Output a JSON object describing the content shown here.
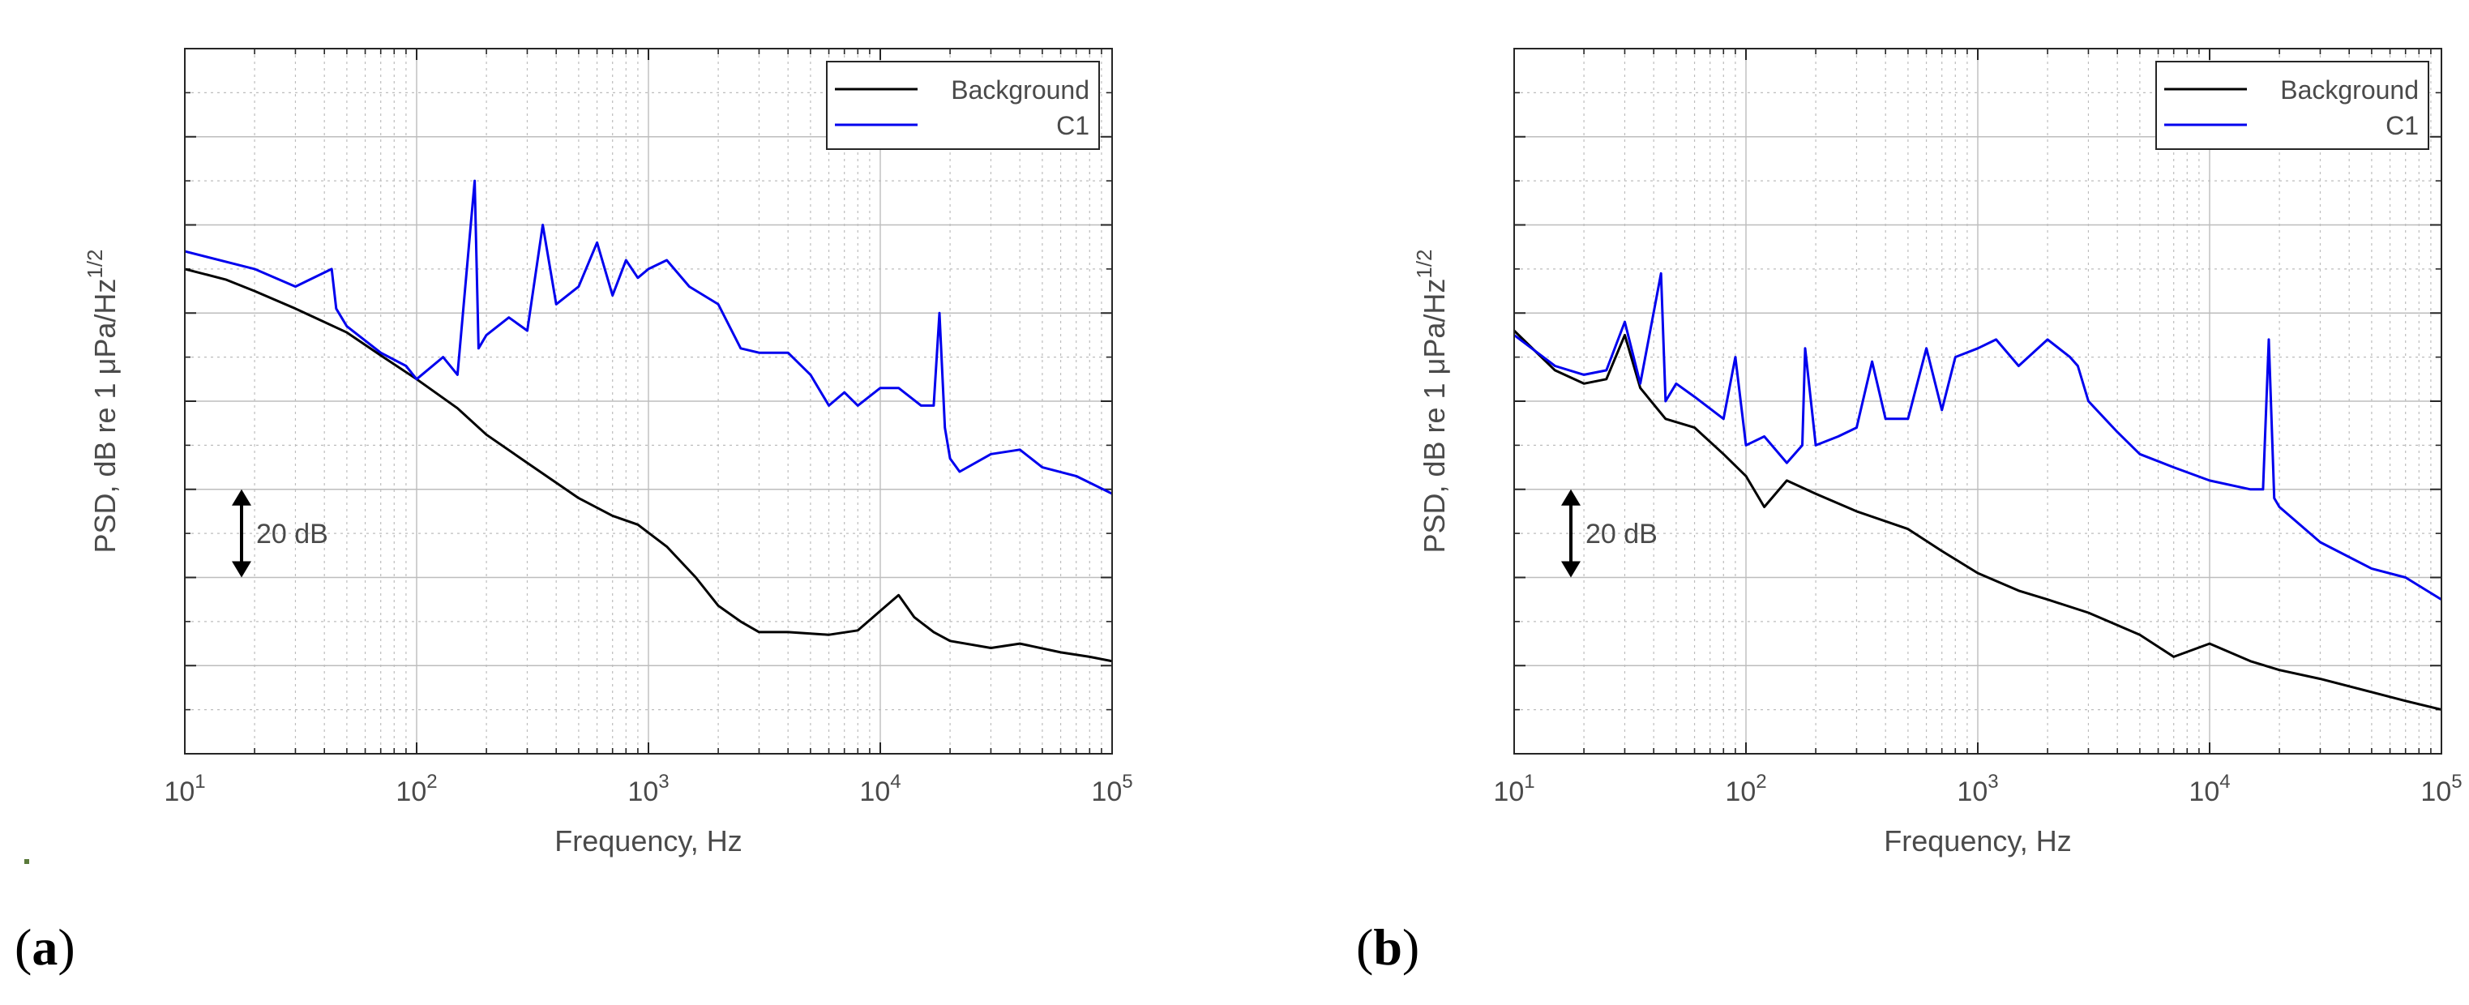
{
  "colors": {
    "background_series": "#000000",
    "c1_series": "#0000ee",
    "grid": "#bdbdbd",
    "axis": "#262626",
    "text": "#4a4a4a"
  },
  "chart_data": [
    {
      "panel_label": "(a)",
      "type": "line",
      "xscale": "log",
      "xlim": [
        10,
        100000
      ],
      "ylim": [
        0,
        8
      ],
      "yticks_shown": false,
      "xlabel": "Frequency, Hz",
      "ylabel": "PSD, dB re 1 μPa/Hz^1/2",
      "ylabel_parts": {
        "main": "PSD, dB re 1 μPa/Hz",
        "sup": "1/2"
      },
      "xticks": [
        {
          "base": "10",
          "exp": "1"
        },
        {
          "base": "10",
          "exp": "2"
        },
        {
          "base": "10",
          "exp": "3"
        },
        {
          "base": "10",
          "exp": "4"
        },
        {
          "base": "10",
          "exp": "5"
        }
      ],
      "grid": true,
      "legend": {
        "position": "top-right",
        "entries": [
          "Background",
          "C1"
        ]
      },
      "scale_annotation": {
        "label": "20 dB",
        "y_from": 2,
        "y_to": 3
      },
      "series": [
        {
          "name": "Background",
          "x": [
            10,
            15,
            20,
            30,
            50,
            70,
            100,
            150,
            200,
            300,
            500,
            700,
            900,
            1200,
            1600,
            2000,
            2500,
            3000,
            4000,
            6000,
            8000,
            10000,
            12000,
            14000,
            17000,
            20000,
            30000,
            40000,
            60000,
            80000,
            100000
          ],
          "y": [
            5.5,
            5.38,
            5.25,
            5.05,
            4.78,
            4.52,
            4.25,
            3.92,
            3.62,
            3.3,
            2.9,
            2.7,
            2.6,
            2.35,
            2.0,
            1.68,
            1.5,
            1.38,
            1.38,
            1.35,
            1.4,
            1.62,
            1.8,
            1.55,
            1.38,
            1.28,
            1.2,
            1.25,
            1.15,
            1.1,
            1.05
          ]
        },
        {
          "name": "C1",
          "x": [
            10,
            20,
            30,
            43,
            45,
            50,
            70,
            90,
            100,
            130,
            150,
            178,
            185,
            200,
            250,
            300,
            350,
            400,
            500,
            600,
            700,
            800,
            900,
            1000,
            1200,
            1500,
            2000,
            2500,
            3000,
            4000,
            5000,
            6000,
            7000,
            8000,
            10000,
            12000,
            15000,
            17000,
            18000,
            19000,
            20000,
            22000,
            30000,
            40000,
            50000,
            70000,
            100000
          ],
          "y": [
            5.7,
            5.5,
            5.3,
            5.5,
            5.05,
            4.85,
            4.55,
            4.4,
            4.25,
            4.5,
            4.3,
            6.5,
            4.6,
            4.75,
            4.95,
            4.8,
            6.0,
            5.1,
            5.3,
            5.8,
            5.2,
            5.6,
            5.4,
            5.5,
            5.6,
            5.3,
            5.1,
            4.6,
            4.55,
            4.55,
            4.3,
            3.95,
            4.1,
            3.95,
            4.15,
            4.15,
            3.95,
            3.95,
            5.0,
            3.7,
            3.35,
            3.2,
            3.4,
            3.45,
            3.25,
            3.15,
            2.95
          ]
        }
      ]
    },
    {
      "panel_label": "(b)",
      "type": "line",
      "xscale": "log",
      "xlim": [
        10,
        100000
      ],
      "ylim": [
        0,
        8
      ],
      "yticks_shown": false,
      "xlabel": "Frequency, Hz",
      "ylabel": "PSD, dB re 1 μPa/Hz^1/2",
      "ylabel_parts": {
        "main": "PSD, dB re 1 μPa/Hz",
        "sup": "1/2"
      },
      "xticks": [
        {
          "base": "10",
          "exp": "1"
        },
        {
          "base": "10",
          "exp": "2"
        },
        {
          "base": "10",
          "exp": "3"
        },
        {
          "base": "10",
          "exp": "4"
        },
        {
          "base": "10",
          "exp": "5"
        }
      ],
      "grid": true,
      "legend": {
        "position": "top-right",
        "entries": [
          "Background",
          "C1"
        ]
      },
      "scale_annotation": {
        "label": "20 dB",
        "y_from": 2,
        "y_to": 3
      },
      "series": [
        {
          "name": "Background",
          "x": [
            10,
            15,
            20,
            25,
            30,
            35,
            45,
            60,
            80,
            100,
            120,
            150,
            200,
            300,
            500,
            700,
            1000,
            1500,
            2000,
            3000,
            5000,
            7000,
            10000,
            15000,
            20000,
            30000,
            50000,
            70000,
            100000
          ],
          "y": [
            4.8,
            4.35,
            4.2,
            4.25,
            4.75,
            4.15,
            3.8,
            3.7,
            3.4,
            3.15,
            2.8,
            3.1,
            2.95,
            2.75,
            2.55,
            2.3,
            2.05,
            1.85,
            1.75,
            1.6,
            1.35,
            1.1,
            1.25,
            1.05,
            0.95,
            0.85,
            0.7,
            0.6,
            0.5
          ]
        },
        {
          "name": "C1",
          "x": [
            10,
            15,
            20,
            25,
            30,
            35,
            43,
            45,
            50,
            60,
            80,
            90,
            100,
            120,
            150,
            175,
            180,
            200,
            250,
            300,
            350,
            400,
            500,
            600,
            700,
            800,
            1000,
            1200,
            1500,
            2000,
            2500,
            2700,
            3000,
            4000,
            5000,
            7000,
            10000,
            15000,
            17000,
            18000,
            19000,
            20000,
            30000,
            50000,
            70000,
            100000
          ],
          "y": [
            4.75,
            4.4,
            4.3,
            4.35,
            4.9,
            4.2,
            5.45,
            4.0,
            4.2,
            4.05,
            3.8,
            4.5,
            3.5,
            3.6,
            3.3,
            3.5,
            4.6,
            3.5,
            3.6,
            3.7,
            4.45,
            3.8,
            3.8,
            4.6,
            3.9,
            4.5,
            4.6,
            4.7,
            4.4,
            4.7,
            4.5,
            4.4,
            4.0,
            3.65,
            3.4,
            3.25,
            3.1,
            3.0,
            3.0,
            4.7,
            2.9,
            2.8,
            2.4,
            2.1,
            2.0,
            1.75
          ]
        }
      ]
    }
  ]
}
